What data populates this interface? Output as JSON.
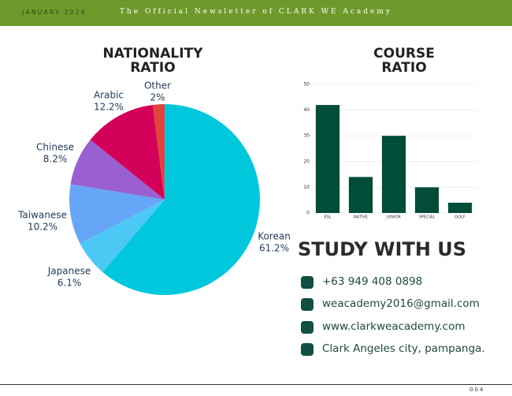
{
  "header": {
    "date": "JANUARY 2026",
    "title": "The Official Newsletter of CLARK WE Academy"
  },
  "chart_data": [
    {
      "type": "pie",
      "title": "NATIONALITY RATIO",
      "categories": [
        "Korean",
        "Japanese",
        "Taiwanese",
        "Chinese",
        "Arabic",
        "Other"
      ],
      "values": [
        61.2,
        6.1,
        10.2,
        8.2,
        12.2,
        2
      ],
      "value_labels": [
        "61.2%",
        "6.1%",
        "10.2%",
        "8.2%",
        "12.2%",
        "2%"
      ],
      "colors": [
        "#00c8dc",
        "#4cc8f5",
        "#66a6f7",
        "#9a5fd0",
        "#d30159",
        "#e2443d"
      ]
    },
    {
      "type": "bar",
      "title": "COURSE RATIO",
      "categories": [
        "ESL",
        "NATIVE",
        "JUNIOR",
        "SPECIAL",
        "GOLF"
      ],
      "values": [
        42,
        14,
        30,
        10,
        4
      ],
      "color": "#024d3a",
      "ylim": [
        0,
        50
      ],
      "yticks": [
        0,
        10,
        20,
        30,
        40,
        50
      ],
      "grid": true
    }
  ],
  "contact": {
    "title": "STUDY WITH US",
    "items": [
      "+63 949 408 0898",
      "weacademy2016@gmail.com",
      "www.clarkweacademy.com",
      "Clark Angeles city, pampanga."
    ]
  },
  "footer": {
    "page": "004"
  }
}
